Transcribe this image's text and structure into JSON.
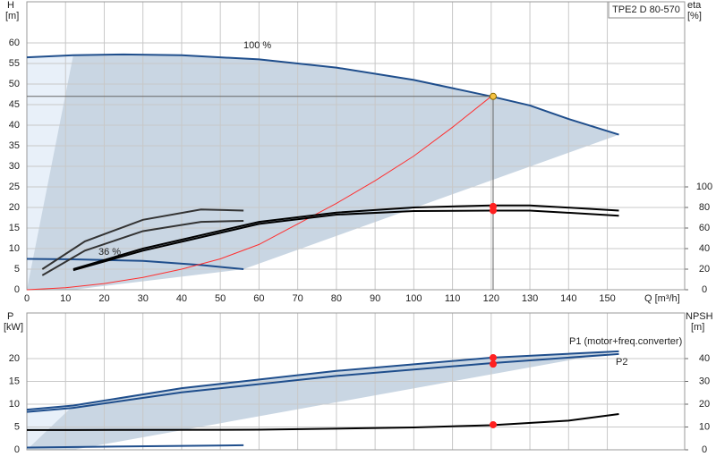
{
  "chart_data": [
    {
      "type": "line",
      "title": "TPE2 D 80-570",
      "ylabel": "H",
      "yunit": "[m]",
      "y2label": "eta",
      "y2unit": "[%]",
      "xlabel": "Q [m³/h]",
      "xlim": [
        0,
        170
      ],
      "xticks": [
        0,
        10,
        20,
        30,
        40,
        50,
        60,
        70,
        80,
        90,
        100,
        110,
        120,
        130,
        140,
        150
      ],
      "ylim": [
        0,
        70
      ],
      "yticks": [
        0,
        5,
        10,
        15,
        20,
        25,
        30,
        35,
        40,
        45,
        50,
        55,
        60
      ],
      "y2lim": [
        0,
        280
      ],
      "y2ticks": [
        0,
        20,
        40,
        60,
        80,
        100
      ],
      "grid": true,
      "annotations": [
        "100 %",
        "36 %"
      ],
      "series": [
        {
          "color": "#1f4e8c",
          "x": [
            0,
            12,
            25,
            40,
            60,
            80,
            100,
            120,
            130,
            140,
            153
          ],
          "values": [
            56.5,
            57,
            57.2,
            57,
            56,
            54,
            51,
            47,
            44.8,
            41.5,
            37.7
          ]
        },
        {
          "color": "#1f4e8c",
          "x": [
            0,
            12,
            30,
            45,
            56
          ],
          "values": [
            7.5,
            7.4,
            7,
            6,
            5
          ]
        },
        {
          "color": "#ff3030",
          "x": [
            0,
            10,
            20,
            30,
            40,
            50,
            60,
            70,
            80,
            90,
            100,
            110,
            120
          ],
          "values": [
            0,
            0.5,
            1.5,
            3,
            5,
            7.5,
            11,
            16,
            21,
            26.5,
            32.5,
            39.5,
            47
          ]
        },
        {
          "color": "#000000",
          "axis": "y2",
          "x": [
            12,
            30,
            60,
            80,
            100,
            120,
            130,
            153
          ],
          "values": [
            20,
            40,
            66,
            75,
            80,
            82,
            82,
            77
          ]
        },
        {
          "color": "#000000",
          "axis": "y2",
          "x": [
            12,
            30,
            60,
            80,
            100,
            120,
            130,
            153
          ],
          "values": [
            19,
            38,
            64,
            73,
            76.5,
            77,
            77,
            72
          ]
        },
        {
          "color": "#333333",
          "axis": "y2",
          "x": [
            4,
            15,
            30,
            45,
            56
          ],
          "values": [
            20,
            47,
            68,
            78,
            77
          ]
        },
        {
          "color": "#333333",
          "axis": "y2",
          "x": [
            4,
            15,
            30,
            45,
            56
          ],
          "values": [
            14,
            38,
            57,
            66,
            67
          ]
        }
      ],
      "points": [
        {
          "color": "#f5c242",
          "x": 120.5,
          "y": 47
        },
        {
          "color": "#ff2020",
          "axis": "y2",
          "x": 120.5,
          "y": 81
        },
        {
          "color": "#ff2020",
          "axis": "y2",
          "x": 120.5,
          "y": 77
        }
      ]
    },
    {
      "type": "line",
      "ylabel": "P",
      "yunit": "[kW]",
      "y2label": "NPSH",
      "y2unit": "[m]",
      "xlim": [
        0,
        170
      ],
      "xticks": [
        0,
        10,
        20,
        30,
        40,
        50,
        60,
        70,
        80,
        90,
        100,
        110,
        120,
        130,
        140,
        150
      ],
      "ylim": [
        0,
        30
      ],
      "yticks": [
        0,
        5,
        10,
        15,
        20
      ],
      "y2lim": [
        0,
        60
      ],
      "y2ticks": [
        0,
        10,
        20,
        30,
        40
      ],
      "grid": true,
      "annotations": [
        "P1 (motor+freq.converter)",
        "P2"
      ],
      "series": [
        {
          "color": "#1f4e8c",
          "x": [
            0,
            12,
            40,
            80,
            120,
            153
          ],
          "values": [
            8.8,
            9.7,
            13.5,
            17.3,
            20.2,
            21.6
          ]
        },
        {
          "color": "#1f4e8c",
          "x": [
            0,
            12,
            40,
            80,
            120,
            153
          ],
          "values": [
            8.3,
            9.2,
            12.6,
            16.2,
            19,
            21
          ]
        },
        {
          "color": "#1f4e8c",
          "x": [
            0,
            56
          ],
          "values": [
            0.5,
            1
          ]
        },
        {
          "color": "#000000",
          "axis": "y2",
          "x": [
            0,
            12,
            60,
            100,
            120,
            140,
            153
          ],
          "values": [
            8.7,
            8.7,
            8.8,
            9.8,
            10.8,
            12.8,
            15.7
          ]
        }
      ],
      "points": [
        {
          "color": "#ff2020",
          "x": 120.5,
          "y": 20.2
        },
        {
          "color": "#ff2020",
          "x": 120.5,
          "y": 18.8
        },
        {
          "color": "#ff2020",
          "axis": "y2",
          "x": 120.5,
          "y": 11
        }
      ]
    }
  ]
}
